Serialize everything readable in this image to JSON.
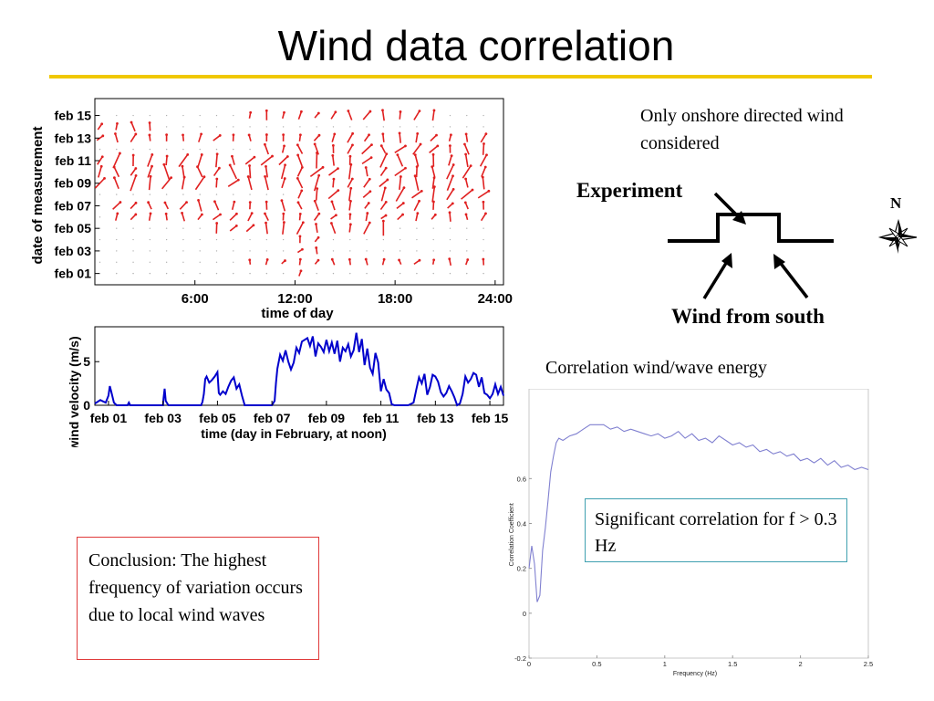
{
  "slide": {
    "title": "Wind data correlation",
    "onshore_note": "Only onshore directed wind considered",
    "experiment_label": "Experiment",
    "wind_south_label": "Wind from south",
    "north_label": "N",
    "correlation_title": "Correlation wind/wave energy",
    "significant_note": "Significant correlation for f > 0.3 Hz",
    "conclusion": "Conclusion:  The highest frequency of variation occurs due to local wind waves",
    "colors": {
      "accent_rule": "#f0c800",
      "arrows": "#e02020",
      "wind_line": "#0000cc",
      "corr_line": "#8080d0",
      "conclusion_border": "#e03a3a",
      "note_border": "#3fa0b0"
    }
  },
  "chart_data": [
    {
      "type": "scatter",
      "subtype": "quiver",
      "xlabel": "time of day",
      "ylabel": "date of measurement",
      "x_ticks": [
        "6:00",
        "12:00",
        "18:00",
        "24:00"
      ],
      "x_tick_values": [
        6,
        12,
        18,
        24
      ],
      "y_ticks": [
        "feb 01",
        "feb 03",
        "feb 05",
        "feb 07",
        "feb 09",
        "feb 11",
        "feb 13",
        "feb 15"
      ],
      "y_tick_values": [
        1,
        3,
        5,
        7,
        9,
        11,
        13,
        15
      ],
      "xlim": [
        0,
        24.5
      ],
      "ylim": [
        0,
        16.5
      ],
      "grid": false,
      "rows": [
        {
          "day": 1,
          "start": 12,
          "end": 12.5,
          "level": 0.3
        },
        {
          "day": 2,
          "start": 9,
          "end": 23.5,
          "level": 0.3
        },
        {
          "day": 3,
          "start": 12,
          "end": 13,
          "level": 0.4
        },
        {
          "day": 4,
          "start": 12,
          "end": 13.5,
          "level": 0.4
        },
        {
          "day": 5,
          "start": 6.5,
          "end": 17,
          "level": 0.9
        },
        {
          "day": 6,
          "start": 1,
          "end": 23.5,
          "level": 0.5
        },
        {
          "day": 7,
          "start": 1,
          "end": 23.5,
          "level": 0.7
        },
        {
          "day": 8,
          "start": 12,
          "end": 23.5,
          "level": 1.0
        },
        {
          "day": 9,
          "start": 0,
          "end": 23.5,
          "level": 1.0
        },
        {
          "day": 10,
          "start": 0,
          "end": 23.5,
          "level": 1.0
        },
        {
          "day": 11,
          "start": 0,
          "end": 23.5,
          "level": 1.0
        },
        {
          "day": 12,
          "start": 10,
          "end": 23.5,
          "level": 0.8
        },
        {
          "day": 13,
          "start": 0,
          "end": 23.5,
          "level": 0.6
        },
        {
          "day": 14,
          "start": 0,
          "end": 3,
          "level": 0.6
        },
        {
          "day": 15,
          "start": 9,
          "end": 20,
          "level": 0.6
        }
      ]
    },
    {
      "type": "line",
      "xlabel": "time (day in February, at noon)",
      "ylabel": "wind velocity (m/s)",
      "x_ticks": [
        "feb 01",
        "feb 03",
        "feb 05",
        "feb 07",
        "feb 09",
        "feb 11",
        "feb 13",
        "feb 15"
      ],
      "x_tick_values": [
        1,
        3,
        5,
        7,
        9,
        11,
        13,
        15
      ],
      "y_ticks": [
        "0",
        "5"
      ],
      "y_tick_values": [
        0,
        5
      ],
      "xlim": [
        0.5,
        15.5
      ],
      "ylim": [
        0,
        9
      ],
      "x": [
        0.5,
        0.7,
        0.9,
        1.0,
        1.05,
        1.1,
        1.2,
        1.3,
        1.5,
        1.7,
        1.75,
        1.8,
        2.0,
        2.5,
        3.0,
        3.02,
        3.06,
        3.1,
        3.2,
        3.5,
        4.0,
        4.4,
        4.45,
        4.5,
        4.55,
        4.6,
        4.7,
        4.8,
        4.9,
        5.0,
        5.05,
        5.1,
        5.2,
        5.3,
        5.4,
        5.5,
        5.6,
        5.7,
        5.8,
        5.9,
        6.0,
        6.5,
        7.0,
        7.1,
        7.15,
        7.2,
        7.3,
        7.4,
        7.5,
        7.6,
        7.7,
        7.8,
        7.9,
        8.0,
        8.1,
        8.2,
        8.3,
        8.4,
        8.5,
        8.6,
        8.7,
        8.8,
        8.9,
        9.0,
        9.1,
        9.2,
        9.3,
        9.4,
        9.5,
        9.6,
        9.7,
        9.8,
        9.9,
        10.0,
        10.1,
        10.2,
        10.3,
        10.4,
        10.5,
        10.6,
        10.7,
        10.8,
        10.9,
        11.0,
        11.1,
        11.2,
        11.3,
        11.4,
        11.5,
        11.6,
        11.7,
        12.0,
        12.2,
        12.3,
        12.4,
        12.5,
        12.6,
        12.7,
        12.8,
        12.9,
        13.0,
        13.1,
        13.2,
        13.3,
        13.4,
        13.5,
        13.6,
        13.7,
        13.8,
        13.9,
        14.0,
        14.1,
        14.2,
        14.3,
        14.4,
        14.5,
        14.6,
        14.7,
        14.8,
        14.9,
        15.0,
        15.1,
        15.2,
        15.3,
        15.4,
        15.5
      ],
      "y": [
        0.2,
        0.6,
        0.3,
        1.1,
        2.2,
        1.6,
        0.3,
        0.0,
        0.0,
        0.0,
        0.3,
        0.0,
        0.0,
        0.0,
        0.0,
        0.8,
        1.9,
        0.5,
        0.0,
        0.0,
        0.0,
        0.0,
        0.4,
        1.3,
        3.0,
        3.3,
        2.6,
        2.9,
        3.3,
        3.8,
        1.4,
        1.2,
        1.6,
        1.3,
        2.1,
        2.8,
        3.2,
        1.9,
        2.4,
        1.1,
        0.0,
        0.0,
        0.0,
        0.5,
        2.6,
        4.2,
        5.8,
        5.1,
        6.3,
        5.0,
        4.1,
        4.9,
        6.6,
        6.0,
        7.3,
        7.5,
        7.7,
        6.8,
        7.9,
        5.6,
        7.1,
        6.7,
        6.1,
        7.5,
        6.2,
        7.2,
        5.9,
        7.4,
        5.0,
        6.6,
        6.2,
        7.0,
        5.6,
        6.3,
        8.3,
        6.1,
        7.6,
        4.6,
        6.5,
        4.3,
        3.6,
        6.0,
        4.9,
        1.6,
        3.0,
        1.8,
        1.4,
        0.1,
        0.0,
        0.0,
        0.0,
        0.0,
        0.3,
        1.8,
        3.2,
        2.5,
        3.6,
        1.2,
        2.1,
        3.5,
        3.3,
        2.7,
        1.5,
        1.0,
        1.4,
        2.2,
        1.6,
        0.9,
        0.0,
        0.2,
        1.3,
        3.3,
        2.6,
        3.0,
        3.7,
        3.5,
        2.1,
        3.2,
        1.4,
        1.2,
        0.8,
        1.3,
        2.4,
        1.3,
        2.1,
        1.1
      ]
    },
    {
      "type": "line",
      "xlabel": "Frequency (Hz)",
      "ylabel": "Correlation Coefficient",
      "x_ticks": [
        "0",
        "0.5",
        "1",
        "1.5",
        "2",
        "2.5"
      ],
      "x_tick_values": [
        0,
        0.5,
        1,
        1.5,
        2,
        2.5
      ],
      "y_ticks": [
        "-0.2",
        "0",
        "0.2",
        "0.4",
        "0.6"
      ],
      "y_tick_values": [
        -0.2,
        0,
        0.2,
        0.4,
        0.6
      ],
      "xlim": [
        0,
        2.5
      ],
      "ylim": [
        -0.2,
        1.0
      ],
      "x": [
        0.0,
        0.02,
        0.04,
        0.06,
        0.08,
        0.1,
        0.12,
        0.14,
        0.16,
        0.18,
        0.2,
        0.22,
        0.25,
        0.3,
        0.35,
        0.4,
        0.45,
        0.5,
        0.55,
        0.6,
        0.65,
        0.7,
        0.75,
        0.8,
        0.85,
        0.9,
        0.95,
        1.0,
        1.05,
        1.1,
        1.15,
        1.2,
        1.25,
        1.3,
        1.35,
        1.4,
        1.45,
        1.5,
        1.55,
        1.6,
        1.65,
        1.7,
        1.75,
        1.8,
        1.85,
        1.9,
        1.95,
        2.0,
        2.05,
        2.1,
        2.15,
        2.2,
        2.25,
        2.3,
        2.35,
        2.4,
        2.45,
        2.5
      ],
      "y": [
        0.2,
        0.3,
        0.22,
        0.05,
        0.08,
        0.28,
        0.38,
        0.5,
        0.63,
        0.7,
        0.76,
        0.78,
        0.77,
        0.79,
        0.8,
        0.82,
        0.84,
        0.84,
        0.84,
        0.82,
        0.83,
        0.81,
        0.82,
        0.81,
        0.8,
        0.79,
        0.8,
        0.78,
        0.79,
        0.81,
        0.78,
        0.8,
        0.77,
        0.78,
        0.76,
        0.79,
        0.77,
        0.75,
        0.76,
        0.74,
        0.75,
        0.72,
        0.73,
        0.71,
        0.72,
        0.7,
        0.71,
        0.68,
        0.69,
        0.67,
        0.69,
        0.66,
        0.68,
        0.65,
        0.66,
        0.64,
        0.65,
        0.64
      ]
    }
  ]
}
